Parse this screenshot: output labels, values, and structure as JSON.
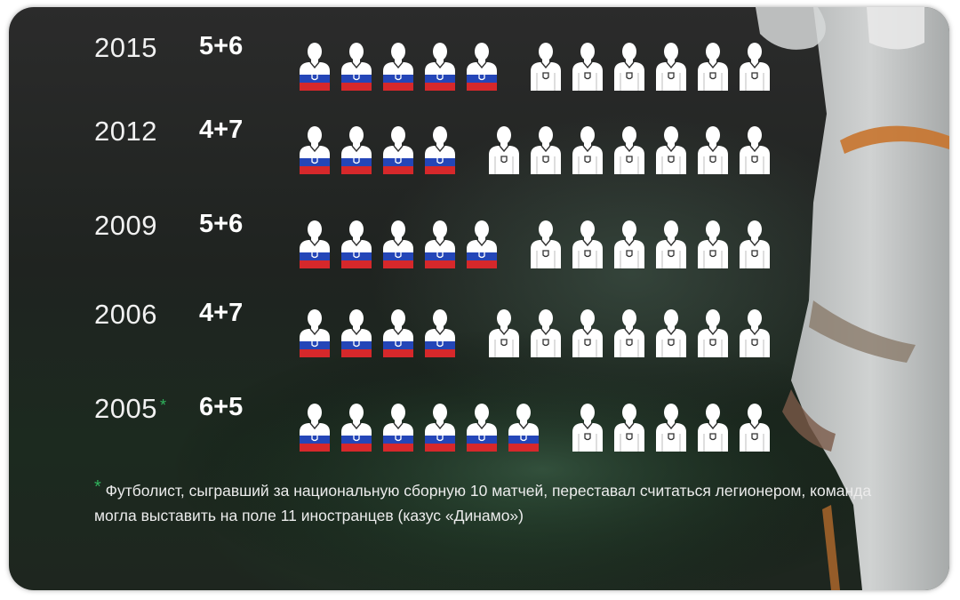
{
  "chart_data": {
    "type": "pictogram",
    "rows": [
      {
        "year": "2015",
        "label": "5+6",
        "russian": 5,
        "foreign": 6,
        "footnote_mark": ""
      },
      {
        "year": "2012",
        "label": "4+7",
        "russian": 4,
        "foreign": 7,
        "footnote_mark": ""
      },
      {
        "year": "2009",
        "label": "5+6",
        "russian": 5,
        "foreign": 6,
        "footnote_mark": ""
      },
      {
        "year": "2006",
        "label": "4+7",
        "russian": 4,
        "foreign": 7,
        "footnote_mark": ""
      },
      {
        "year": "2005",
        "label": "6+5",
        "russian": 6,
        "foreign": 5,
        "footnote_mark": "*"
      }
    ]
  },
  "footnote": {
    "mark": "*",
    "text": "Футболист, сыгравший за национальную сборную 10 матчей, переставал считаться легионером, команда могла выставить на поле 11 иностранцев (казус «Динамо»)"
  },
  "colors": {
    "flag_white": "#ffffff",
    "flag_blue": "#2446b8",
    "flag_red": "#d6282b",
    "accent_green": "#2fb35c"
  },
  "icons": {
    "russian_player": "player-russian-flag-icon",
    "foreign_player": "player-white-jersey-icon"
  }
}
